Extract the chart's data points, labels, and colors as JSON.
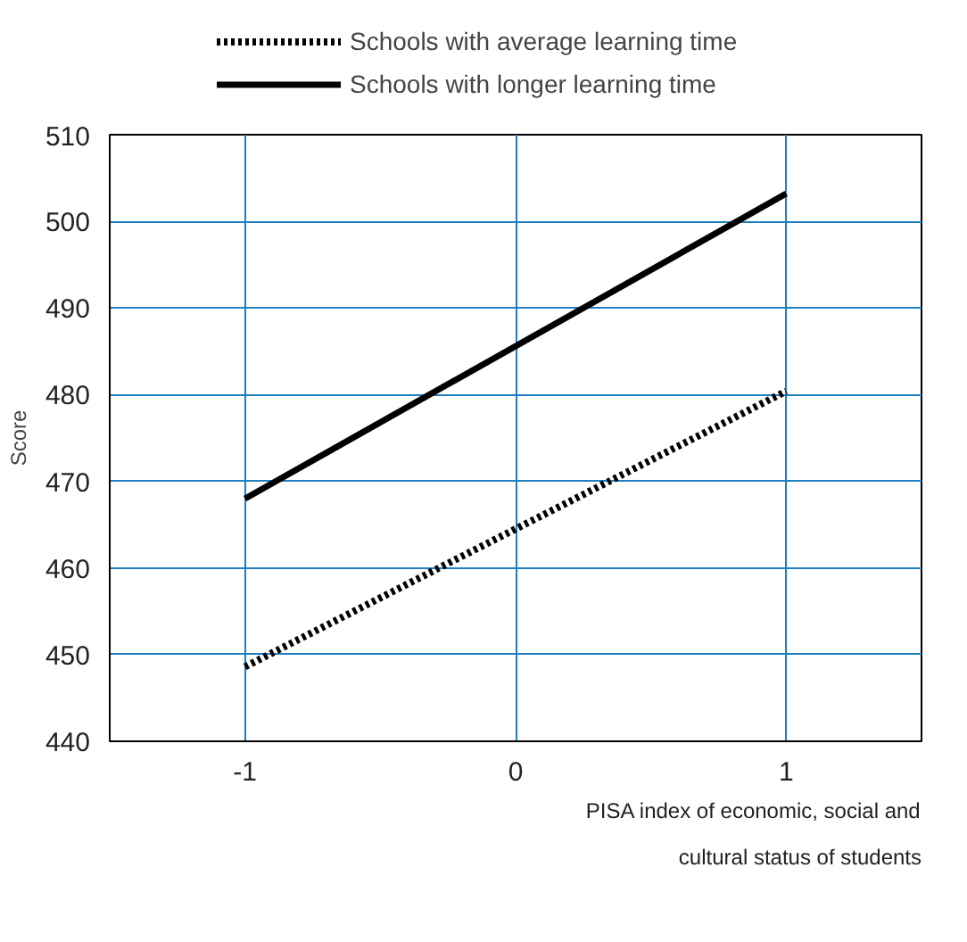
{
  "chart_data": {
    "type": "line",
    "xlabel": "PISA index of economic, social and cultural status of students",
    "ylabel": "Score",
    "x": [
      -1,
      1
    ],
    "series": [
      {
        "name": "Schools with average learning time",
        "color": "#000000",
        "values": [
          448.6,
          480.4
        ],
        "line_style": "dotted"
      },
      {
        "name": "Schools with longer learning time",
        "color": "#000000",
        "values": [
          468,
          503.2
        ],
        "line_style": "solid"
      }
    ],
    "xlim": [
      -1.5,
      1.5
    ],
    "xticks": [
      -1,
      0,
      1
    ],
    "ylim": [
      440,
      510
    ],
    "yticks": [
      440,
      450,
      460,
      470,
      480,
      490,
      500,
      510
    ],
    "grid": true,
    "legend": "top",
    "marker": "none"
  }
}
